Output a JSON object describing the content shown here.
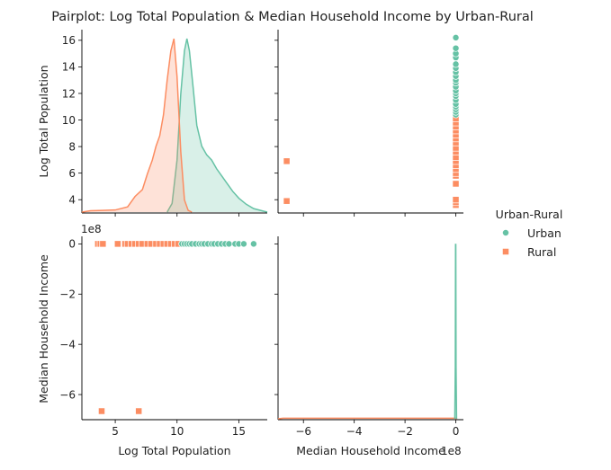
{
  "chart_data": {
    "type": "scatter",
    "title": "Pairplot: Log Total Population & Median Household Income by Urban-Rural",
    "variables": [
      "Log Total Population",
      "Median Household Income"
    ],
    "axis_labels": {
      "log_pop": "Log Total Population",
      "income": "Median Household Income"
    },
    "axis_offsets": {
      "income": "1e8"
    },
    "ticks": {
      "log_pop": [
        "5",
        "10",
        "15"
      ],
      "log_pop_y": [
        "4",
        "6",
        "8",
        "10",
        "12",
        "14",
        "16"
      ],
      "income": [
        "−6",
        "−4",
        "−2",
        "0"
      ]
    },
    "ranges": {
      "log_pop_x": [
        2.3,
        17.3
      ],
      "log_pop_y": [
        3.0,
        16.8
      ],
      "income_1e8": [
        -7.0,
        0.3
      ],
      "kde_density": [
        0,
        1
      ]
    },
    "grid": false,
    "legend": {
      "title": "Urban-Rural",
      "placement": "right",
      "entries": [
        "Urban",
        "Rural"
      ]
    },
    "series": [
      {
        "name": "Urban",
        "color": "#66c2a5",
        "marker": "circle",
        "log_population": [
          10.4,
          10.6,
          10.8,
          11.0,
          11.2,
          11.5,
          11.8,
          12.0,
          12.2,
          12.5,
          12.8,
          13.0,
          13.3,
          13.6,
          13.9,
          14.2,
          14.7,
          15.0,
          15.4,
          16.2
        ],
        "median_income_1e8": [
          0,
          0,
          0,
          0,
          0,
          0,
          0,
          0,
          0,
          0,
          0,
          0,
          0,
          0,
          0,
          0,
          0,
          0,
          0,
          0
        ],
        "kde": [
          [
            9.2,
            0
          ],
          [
            9.6,
            0.05
          ],
          [
            10.0,
            0.3
          ],
          [
            10.3,
            0.68
          ],
          [
            10.6,
            0.93
          ],
          [
            10.8,
            1.0
          ],
          [
            11.0,
            0.93
          ],
          [
            11.3,
            0.72
          ],
          [
            11.6,
            0.5
          ],
          [
            12.0,
            0.38
          ],
          [
            12.4,
            0.33
          ],
          [
            12.8,
            0.3
          ],
          [
            13.2,
            0.25
          ],
          [
            13.6,
            0.21
          ],
          [
            14.0,
            0.17
          ],
          [
            14.5,
            0.12
          ],
          [
            15.0,
            0.08
          ],
          [
            15.6,
            0.045
          ],
          [
            16.2,
            0.02
          ],
          [
            17.0,
            0.005
          ],
          [
            17.3,
            0
          ]
        ],
        "income_kde": [
          [
            -0.04,
            0
          ],
          [
            -0.02,
            0.3
          ],
          [
            -0.01,
            1.0
          ],
          [
            0.0,
            1.0
          ],
          [
            0.01,
            0.3
          ],
          [
            0.03,
            0
          ]
        ]
      },
      {
        "name": "Rural",
        "color": "#fc8d62",
        "marker": "square",
        "log_population": [
          3.6,
          3.8,
          4.0,
          5.2,
          5.8,
          6.0,
          6.3,
          6.6,
          6.9,
          7.2,
          7.6,
          7.9,
          8.3,
          8.6,
          8.9,
          9.2,
          9.5,
          9.8,
          10.1,
          3.9,
          6.9
        ],
        "median_income_1e8": [
          0,
          0,
          0,
          0,
          0,
          0,
          0,
          0,
          0,
          0,
          0,
          0,
          0,
          0,
          0,
          0,
          0,
          0,
          0,
          -6.66,
          -6.66
        ],
        "kde": [
          [
            2.3,
            0
          ],
          [
            3.0,
            0.008
          ],
          [
            4.0,
            0.01
          ],
          [
            5.0,
            0.012
          ],
          [
            6.0,
            0.03
          ],
          [
            6.6,
            0.09
          ],
          [
            7.2,
            0.13
          ],
          [
            7.6,
            0.22
          ],
          [
            8.0,
            0.3
          ],
          [
            8.3,
            0.38
          ],
          [
            8.6,
            0.44
          ],
          [
            8.9,
            0.56
          ],
          [
            9.2,
            0.76
          ],
          [
            9.5,
            0.93
          ],
          [
            9.75,
            1.0
          ],
          [
            10.0,
            0.78
          ],
          [
            10.3,
            0.35
          ],
          [
            10.6,
            0.07
          ],
          [
            10.9,
            0.01
          ],
          [
            11.2,
            0
          ]
        ],
        "income_kde": [
          [
            -7.0,
            0
          ],
          [
            -6.8,
            0.003
          ],
          [
            -5.0,
            0.003
          ],
          [
            -3.0,
            0.003
          ],
          [
            -1.0,
            0.003
          ],
          [
            0.0,
            0.003
          ],
          [
            0.05,
            0
          ]
        ]
      }
    ]
  }
}
